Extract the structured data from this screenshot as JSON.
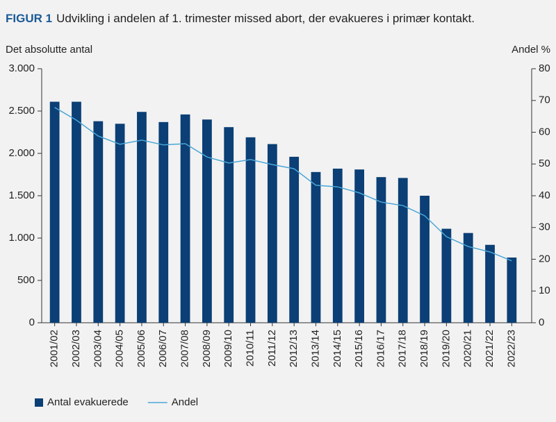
{
  "chart_data": {
    "type": "bar",
    "figure_label": "FIGUR 1",
    "title": "Udvikling i andelen af 1. trimester missed abort, der evakueres i primær kontakt.",
    "ylabel": "Det absolutte antal",
    "y2label": "Andel %",
    "categories": [
      "2001/02",
      "2002/03",
      "2003/04",
      "2004/05",
      "2005/06",
      "2006/07",
      "2007/08",
      "2008/09",
      "2009/10",
      "2010/11",
      "2011/12",
      "2012/13",
      "2013/14",
      "2014/15",
      "2015/16",
      "2016/17",
      "2017/18",
      "2018/19",
      "2019/20",
      "2020/21",
      "2021/22",
      "2022/23"
    ],
    "series": [
      {
        "name": "Antal evakuerede",
        "type": "bar",
        "color": "#0b3f75",
        "values": [
          2610,
          2610,
          2380,
          2350,
          2490,
          2370,
          2460,
          2400,
          2310,
          2190,
          2110,
          1960,
          1780,
          1820,
          1810,
          1720,
          1710,
          1500,
          1110,
          1060,
          920,
          770
        ]
      },
      {
        "name": "Andel",
        "type": "line",
        "axis": "y2",
        "color": "#4aa6d6",
        "values": [
          67.8,
          63.8,
          58.8,
          56.2,
          57.5,
          56.0,
          56.4,
          52.2,
          50.3,
          51.4,
          49.8,
          48.5,
          43.3,
          42.8,
          40.9,
          38.0,
          36.9,
          33.7,
          27.1,
          24.0,
          22.3,
          19.5
        ]
      }
    ],
    "ylim": [
      0,
      3000
    ],
    "yticks": [
      0,
      500,
      {
        "value": 1000,
        "label": "1.000"
      },
      {
        "value": 1500,
        "label": "1.500"
      },
      {
        "value": 2000,
        "label": "2.000"
      },
      {
        "value": 2500,
        "label": "2.500"
      },
      {
        "value": 3000,
        "label": "3.000"
      }
    ],
    "y2lim": [
      0,
      80
    ],
    "y2ticks": [
      0,
      10,
      20,
      30,
      40,
      50,
      60,
      70,
      80
    ],
    "legend": "bottom"
  }
}
